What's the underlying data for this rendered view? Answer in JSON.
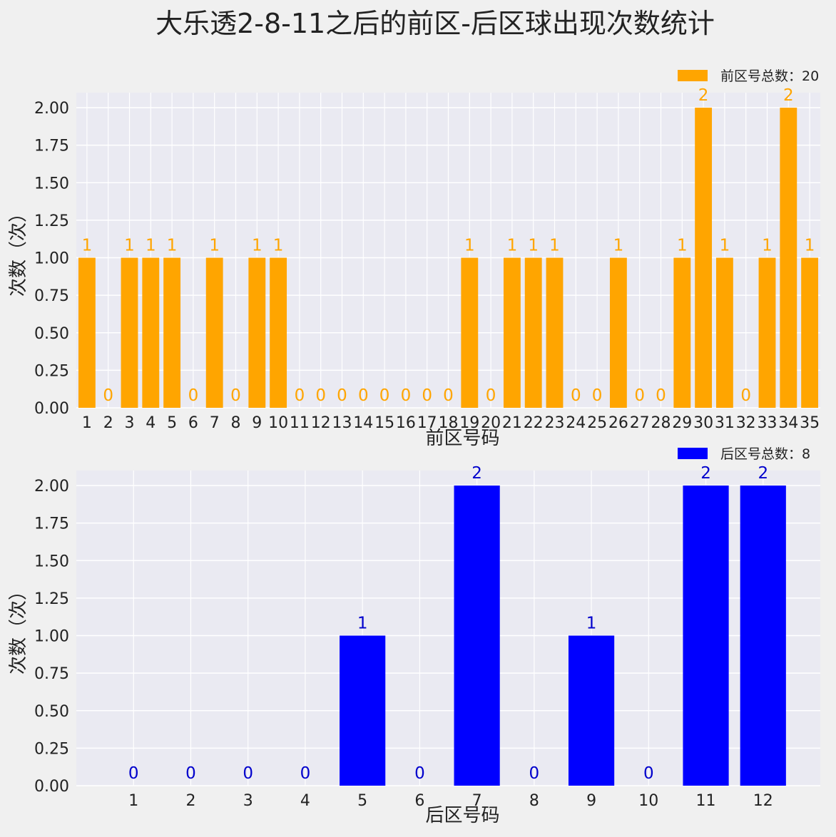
{
  "title": "大乐透2-8-11之后的前区-后区球出现次数统计",
  "chart_data": [
    {
      "type": "bar",
      "categories": [
        "1",
        "2",
        "3",
        "4",
        "5",
        "6",
        "7",
        "8",
        "9",
        "10",
        "11",
        "12",
        "13",
        "14",
        "15",
        "16",
        "17",
        "18",
        "19",
        "20",
        "21",
        "22",
        "23",
        "24",
        "25",
        "26",
        "27",
        "28",
        "29",
        "30",
        "31",
        "32",
        "33",
        "34",
        "35"
      ],
      "values": [
        1,
        0,
        1,
        1,
        1,
        0,
        1,
        0,
        1,
        1,
        0,
        0,
        0,
        0,
        0,
        0,
        0,
        0,
        1,
        0,
        1,
        1,
        1,
        0,
        0,
        1,
        0,
        0,
        1,
        2,
        1,
        0,
        1,
        2,
        1
      ],
      "xlabel": "前区号码",
      "ylabel": "次数（次）",
      "ylim": [
        0,
        2.1
      ],
      "yticks": [
        "0.00",
        "0.25",
        "0.50",
        "0.75",
        "1.00",
        "1.25",
        "1.50",
        "1.75",
        "2.00"
      ],
      "legend": "前区号总数：20",
      "legend_position": "top-right",
      "color": "#ffa500",
      "label_color": "#ffa500",
      "grid": true
    },
    {
      "type": "bar",
      "categories": [
        "1",
        "2",
        "3",
        "4",
        "5",
        "6",
        "7",
        "8",
        "9",
        "10",
        "11",
        "12"
      ],
      "values": [
        0,
        0,
        0,
        0,
        1,
        0,
        2,
        0,
        1,
        0,
        2,
        2
      ],
      "xlabel": "后区号码",
      "ylabel": "次数（次）",
      "ylim": [
        0,
        2.1
      ],
      "yticks": [
        "0.00",
        "0.25",
        "0.50",
        "0.75",
        "1.00",
        "1.25",
        "1.50",
        "1.75",
        "2.00"
      ],
      "legend": "后区号总数：8",
      "legend_position": "top-right",
      "color": "#0000ff",
      "label_color": "#0000cc",
      "grid": true
    }
  ]
}
